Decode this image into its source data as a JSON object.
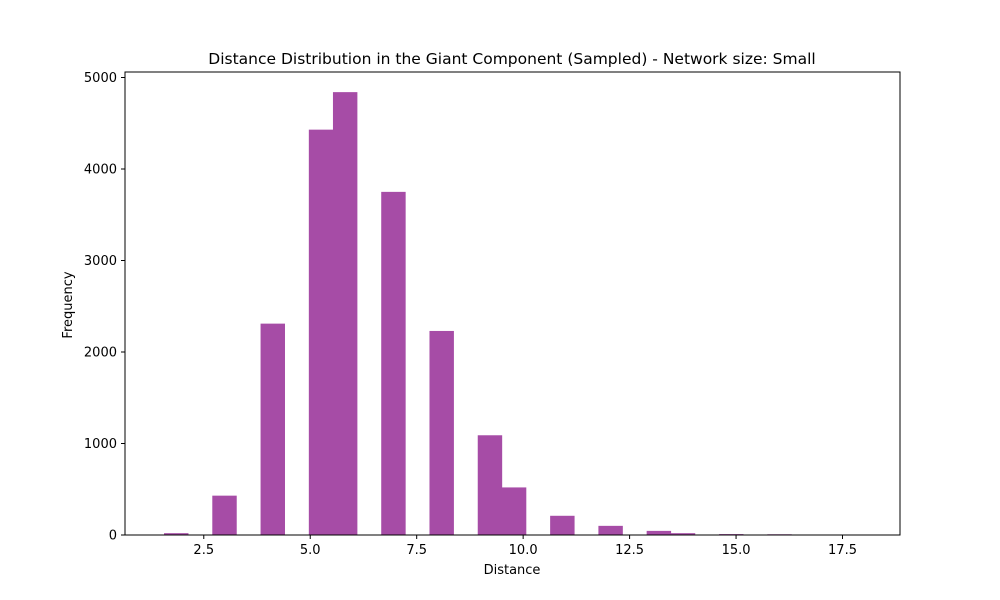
{
  "chart_data": {
    "type": "bar",
    "title": "Distance Distribution in the Giant Component (Sampled) - Network size: Small",
    "xlabel": "Distance",
    "ylabel": "Frequency",
    "xlim": [
      0.65,
      18.85
    ],
    "ylim": [
      0,
      5060
    ],
    "x_ticks": [
      2.5,
      5.0,
      7.5,
      10.0,
      12.5,
      15.0,
      17.5
    ],
    "x_tick_labels": [
      "2.5",
      "5.0",
      "7.5",
      "10.0",
      "12.5",
      "15.0",
      "17.5"
    ],
    "y_ticks": [
      0,
      1000,
      2000,
      3000,
      4000,
      5000
    ],
    "y_tick_labels": [
      "0",
      "1000",
      "2000",
      "3000",
      "4000",
      "5000"
    ],
    "bin_start": 1,
    "bin_width": 0.5667,
    "values": [
      0,
      20,
      0,
      430,
      0,
      2310,
      0,
      4430,
      4840,
      0,
      3750,
      0,
      2230,
      0,
      1090,
      520,
      0,
      210,
      0,
      100,
      0,
      45,
      20,
      0,
      10,
      0,
      8,
      0,
      0,
      0
    ],
    "color": "#a64ca6",
    "grid": false,
    "legend": "none"
  }
}
